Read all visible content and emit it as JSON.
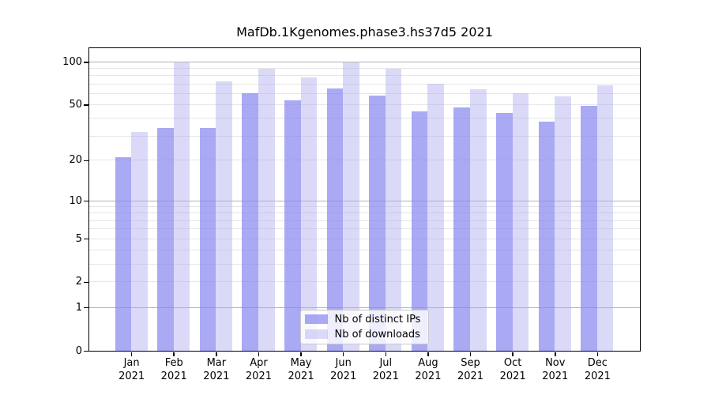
{
  "chart_data": {
    "type": "bar",
    "title": "MafDb.1Kgenomes.phase3.hs37d5 2021",
    "year_label": "2021",
    "months": [
      "Jan",
      "Feb",
      "Mar",
      "Apr",
      "May",
      "Jun",
      "Jul",
      "Aug",
      "Sep",
      "Oct",
      "Nov",
      "Dec"
    ],
    "categories": [
      "Jan 2021",
      "Feb 2021",
      "Mar 2021",
      "Apr 2021",
      "May 2021",
      "Jun 2021",
      "Jul 2021",
      "Aug 2021",
      "Sep 2021",
      "Oct 2021",
      "Nov 2021",
      "Dec 2021"
    ],
    "series": [
      {
        "key": "distinct-ips",
        "name": "Nb of distinct IPs",
        "color": "rgba(136,136,240,0.72)",
        "values": [
          21,
          34,
          34,
          60,
          54,
          65,
          58,
          45,
          48,
          44,
          38,
          49
        ]
      },
      {
        "key": "downloads",
        "name": "Nb of downloads",
        "color": "rgba(170,170,240,0.44)",
        "values": [
          32,
          99,
          73,
          90,
          78,
          100,
          90,
          70,
          64,
          60,
          57,
          69
        ]
      }
    ],
    "y_axis": {
      "scale": "log10(value+1)",
      "tick_labels": [
        0,
        1,
        2,
        5,
        10,
        20,
        50,
        100
      ],
      "major_gridlines": [
        1,
        10,
        100
      ],
      "minor_gridlines": [
        2,
        3,
        4,
        5,
        6,
        7,
        8,
        9,
        20,
        30,
        40,
        50,
        60,
        70,
        80,
        90
      ],
      "top_value": 125
    },
    "legend": {
      "position": "bottom-center",
      "entries": [
        "Nb of distinct IPs",
        "Nb of downloads"
      ]
    },
    "grid": "on"
  },
  "colors": {
    "background": "#ffffff",
    "spine": "#000000",
    "text": "#000000",
    "major_grid": "#b3b3b3",
    "minor_grid": "#e6e6e6",
    "bar_distinct_ips": "rgba(136,136,240,0.72)",
    "bar_downloads": "rgba(170,170,240,0.44)",
    "legend_border": "#c9c9c9",
    "legend_background": "rgba(255,255,255,0.8)"
  }
}
